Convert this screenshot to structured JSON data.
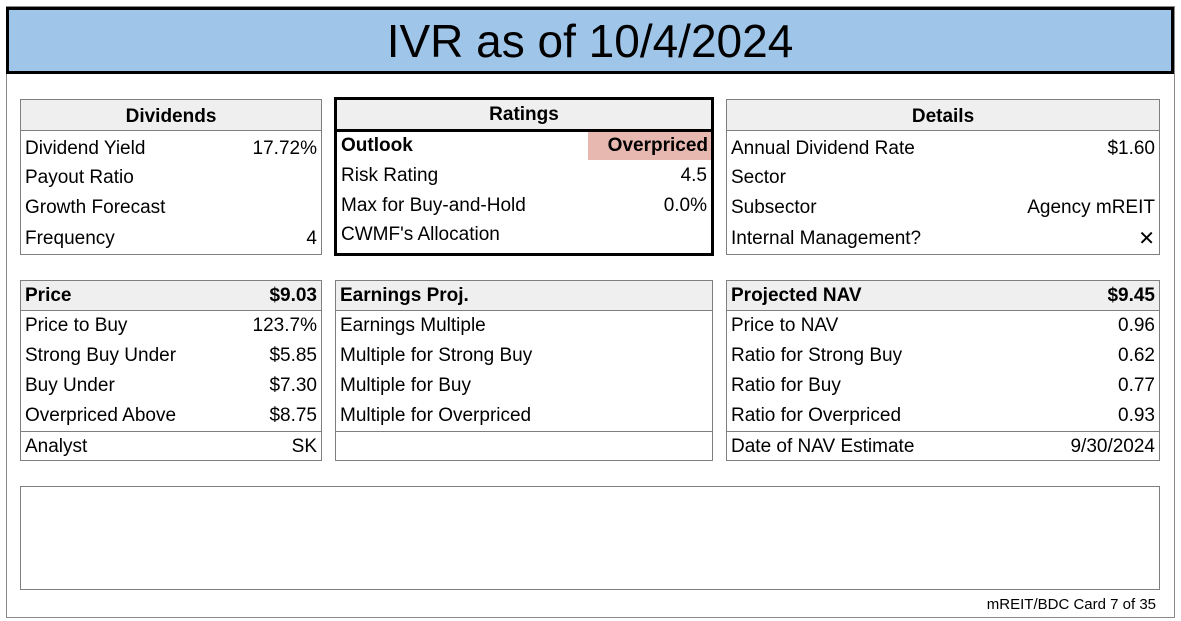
{
  "title": "IVR as of 10/4/2024",
  "dividends": {
    "header": "Dividends",
    "rows": [
      {
        "label": "Dividend Yield",
        "value": "17.72%"
      },
      {
        "label": "Payout Ratio",
        "value": ""
      },
      {
        "label": "Growth Forecast",
        "value": ""
      },
      {
        "label": "Frequency",
        "value": "4"
      }
    ]
  },
  "ratings": {
    "header": "Ratings",
    "outlook_label": "Outlook",
    "outlook_value": "Overpriced",
    "outlook_color": "#e6b8af",
    "rows": [
      {
        "label": "Risk Rating",
        "value": "4.5"
      },
      {
        "label": "Max for Buy-and-Hold",
        "value": "0.0%"
      },
      {
        "label": "CWMF's Allocation",
        "value": ""
      }
    ]
  },
  "details": {
    "header": "Details",
    "rows": [
      {
        "label": "Annual Dividend Rate",
        "value": "$1.60"
      },
      {
        "label": "Sector",
        "value": ""
      },
      {
        "label": "Subsector",
        "value": "Agency mREIT"
      },
      {
        "label": "Internal Management?",
        "value": "✕"
      }
    ]
  },
  "price": {
    "header_label": "Price",
    "header_value": "$9.03",
    "rows": [
      {
        "label": "Price to Buy",
        "value": "123.7%"
      },
      {
        "label": "Strong Buy Under",
        "value": "$5.85"
      },
      {
        "label": "Buy Under",
        "value": "$7.30"
      },
      {
        "label": "Overpriced Above",
        "value": "$8.75"
      }
    ],
    "analyst_label": "Analyst",
    "analyst_value": "SK"
  },
  "earnings": {
    "header_label": "Earnings Proj.",
    "header_value": "",
    "rows": [
      {
        "label": "Earnings Multiple",
        "value": ""
      },
      {
        "label": "Multiple for Strong Buy",
        "value": ""
      },
      {
        "label": "Multiple for Buy",
        "value": ""
      },
      {
        "label": "Multiple for Overpriced",
        "value": ""
      }
    ]
  },
  "nav": {
    "header_label": "Projected NAV",
    "header_value": "$9.45",
    "rows": [
      {
        "label": "Price to NAV",
        "value": "0.96"
      },
      {
        "label": "Ratio for Strong Buy",
        "value": "0.62"
      },
      {
        "label": "Ratio for Buy",
        "value": "0.77"
      },
      {
        "label": "Ratio for Overpriced",
        "value": "0.93"
      }
    ],
    "date_label": "Date of NAV Estimate",
    "date_value": "9/30/2024"
  },
  "notes": "",
  "footer": "mREIT/BDC Card 7 of 35"
}
